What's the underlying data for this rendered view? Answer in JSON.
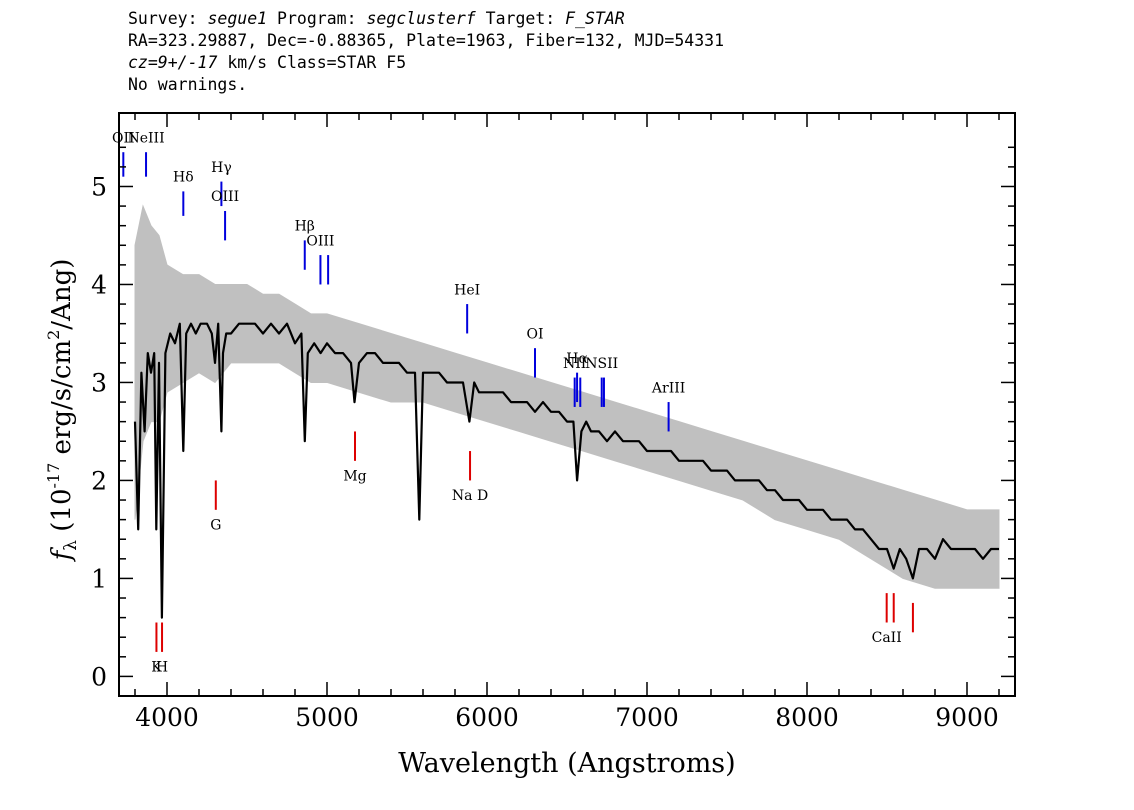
{
  "header": {
    "line1": {
      "survey_label": "Survey: ",
      "survey": "segue1",
      "program_label": " Program: ",
      "program": "segclusterf",
      "target_label": " Target: ",
      "target": "F_STAR"
    },
    "line2": "RA=323.29887, Dec=-0.88365, Plate=1963, Fiber=132, MJD=54331",
    "line3": {
      "cz": "cz=9+/-17",
      "rest": " km/s Class=STAR F5"
    },
    "line4": "No warnings."
  },
  "chart_data": {
    "type": "line",
    "xlabel": "Wavelength (Angstroms)",
    "ylabel_parts": {
      "symbol": "f",
      "subscript": "λ",
      "unit_open": " (10",
      "exponent": "-17",
      "unit_mid": " erg/s/cm",
      "exponent2": "2",
      "unit_close": "/Ang)"
    },
    "xlim": [
      3700,
      9300
    ],
    "ylim": [
      -0.2,
      5.75
    ],
    "x_ticks": [
      4000,
      5000,
      6000,
      7000,
      8000,
      9000
    ],
    "x_tick_labels": [
      "4000",
      "5000",
      "6000",
      "7000",
      "8000",
      "9000"
    ],
    "y_ticks": [
      0,
      1,
      2,
      3,
      4,
      5
    ],
    "y_tick_labels": [
      "0",
      "1",
      "2",
      "3",
      "4",
      "5"
    ],
    "series": [
      {
        "role": "flux",
        "color": "#000000",
        "x": [
          3800,
          3820,
          3840,
          3860,
          3880,
          3900,
          3920,
          3933,
          3950,
          3968,
          3990,
          4020,
          4050,
          4080,
          4102,
          4120,
          4150,
          4180,
          4210,
          4250,
          4280,
          4300,
          4320,
          4340,
          4350,
          4370,
          4400,
          4450,
          4500,
          4550,
          4600,
          4650,
          4700,
          4750,
          4800,
          4840,
          4861,
          4880,
          4920,
          4960,
          5000,
          5050,
          5100,
          5150,
          5172,
          5200,
          5250,
          5300,
          5350,
          5400,
          5450,
          5500,
          5550,
          5577,
          5600,
          5650,
          5700,
          5750,
          5800,
          5850,
          5890,
          5920,
          5950,
          6000,
          6050,
          6100,
          6150,
          6200,
          6250,
          6300,
          6350,
          6400,
          6450,
          6500,
          6540,
          6563,
          6590,
          6620,
          6650,
          6700,
          6750,
          6800,
          6850,
          6900,
          6950,
          7000,
          7050,
          7100,
          7150,
          7200,
          7250,
          7300,
          7350,
          7400,
          7450,
          7500,
          7550,
          7600,
          7650,
          7700,
          7750,
          7800,
          7850,
          7900,
          7950,
          8000,
          8050,
          8100,
          8150,
          8200,
          8250,
          8300,
          8350,
          8400,
          8450,
          8500,
          8542,
          8580,
          8620,
          8662,
          8700,
          8750,
          8800,
          8850,
          8900,
          8950,
          9000,
          9050,
          9100,
          9150,
          9200
        ],
        "y": [
          2.6,
          1.5,
          3.1,
          2.5,
          3.3,
          3.1,
          3.3,
          1.5,
          3.2,
          0.6,
          3.3,
          3.5,
          3.4,
          3.6,
          2.3,
          3.5,
          3.6,
          3.5,
          3.6,
          3.6,
          3.5,
          3.2,
          3.6,
          2.5,
          3.3,
          3.5,
          3.5,
          3.6,
          3.6,
          3.6,
          3.5,
          3.6,
          3.5,
          3.6,
          3.4,
          3.5,
          2.4,
          3.3,
          3.4,
          3.3,
          3.4,
          3.3,
          3.3,
          3.2,
          2.8,
          3.2,
          3.3,
          3.3,
          3.2,
          3.2,
          3.2,
          3.1,
          3.1,
          1.6,
          3.1,
          3.1,
          3.1,
          3.0,
          3.0,
          3.0,
          2.6,
          3.0,
          2.9,
          2.9,
          2.9,
          2.9,
          2.8,
          2.8,
          2.8,
          2.7,
          2.8,
          2.7,
          2.7,
          2.6,
          2.6,
          2.0,
          2.5,
          2.6,
          2.5,
          2.5,
          2.4,
          2.5,
          2.4,
          2.4,
          2.4,
          2.3,
          2.3,
          2.3,
          2.3,
          2.2,
          2.2,
          2.2,
          2.2,
          2.1,
          2.1,
          2.1,
          2.0,
          2.0,
          2.0,
          2.0,
          1.9,
          1.9,
          1.8,
          1.8,
          1.8,
          1.7,
          1.7,
          1.7,
          1.6,
          1.6,
          1.6,
          1.5,
          1.5,
          1.4,
          1.3,
          1.3,
          1.1,
          1.3,
          1.2,
          1.0,
          1.3,
          1.3,
          1.2,
          1.4,
          1.3,
          1.3,
          1.3,
          1.3,
          1.2,
          1.3,
          1.3
        ]
      },
      {
        "role": "error",
        "color": "#c0c0c0",
        "x": [
          3800,
          3850,
          3900,
          3950,
          4000,
          4100,
          4200,
          4300,
          4400,
          4500,
          4600,
          4700,
          4800,
          4900,
          5000,
          5200,
          5400,
          5600,
          5800,
          6000,
          6200,
          6400,
          6600,
          6800,
          7000,
          7200,
          7400,
          7600,
          7800,
          8000,
          8200,
          8400,
          8600,
          8800,
          9000,
          9200
        ],
        "y_low": [
          1.6,
          2.4,
          2.6,
          2.6,
          2.9,
          3.0,
          3.1,
          3.0,
          3.2,
          3.2,
          3.2,
          3.2,
          3.1,
          3.0,
          3.0,
          2.9,
          2.8,
          2.8,
          2.7,
          2.6,
          2.5,
          2.4,
          2.3,
          2.2,
          2.1,
          2.0,
          1.9,
          1.8,
          1.6,
          1.5,
          1.4,
          1.2,
          1.0,
          0.9,
          0.9,
          0.9
        ],
        "y_high": [
          4.4,
          4.8,
          4.6,
          4.5,
          4.2,
          4.1,
          4.1,
          4.0,
          4.0,
          4.0,
          3.9,
          3.9,
          3.8,
          3.7,
          3.7,
          3.6,
          3.5,
          3.4,
          3.3,
          3.2,
          3.1,
          3.0,
          2.9,
          2.8,
          2.7,
          2.6,
          2.5,
          2.4,
          2.3,
          2.2,
          2.1,
          2.0,
          1.9,
          1.8,
          1.7,
          1.7
        ]
      }
    ],
    "emission_lines": [
      {
        "label": "OII",
        "x": 3727,
        "y0": 5.1,
        "y1": 5.35,
        "label_y": 5.45
      },
      {
        "label": "NeIII",
        "x": 3869,
        "y0": 5.1,
        "y1": 5.35,
        "label_y": 5.45
      },
      {
        "label": "Hδ",
        "x": 4102,
        "y0": 4.7,
        "y1": 4.95,
        "label_y": 5.05
      },
      {
        "label": "Hγ",
        "x": 4340,
        "y0": 4.8,
        "y1": 5.05,
        "label_y": 5.15
      },
      {
        "label": "OIII",
        "x": 4363,
        "y0": 4.45,
        "y1": 4.75,
        "label_y": 4.85
      },
      {
        "label": "Hβ",
        "x": 4861,
        "y0": 4.15,
        "y1": 4.45,
        "label_y": 4.55
      },
      {
        "label": "OIII",
        "x": 4959,
        "y0": 4.0,
        "y1": 4.3,
        "label_y": 4.4
      },
      {
        "label": "",
        "x": 5007,
        "y0": 4.0,
        "y1": 4.3,
        "label_y": 4.4
      },
      {
        "label": "HeI",
        "x": 5876,
        "y0": 3.5,
        "y1": 3.8,
        "label_y": 3.9
      },
      {
        "label": "OI",
        "x": 6300,
        "y0": 3.05,
        "y1": 3.35,
        "label_y": 3.45
      },
      {
        "label": "NII",
        "x": 6548,
        "y0": 2.75,
        "y1": 3.05,
        "label_y": 3.15
      },
      {
        "label": "Hα",
        "x": 6563,
        "y0": 2.8,
        "y1": 3.1,
        "label_y": 3.2
      },
      {
        "label": "",
        "x": 6583,
        "y0": 2.75,
        "y1": 3.05,
        "label_y": 3.15
      },
      {
        "label": "NSII",
        "x": 6717,
        "y0": 2.75,
        "y1": 3.05,
        "label_y": 3.15
      },
      {
        "label": "",
        "x": 6731,
        "y0": 2.75,
        "y1": 3.05,
        "label_y": 3.15
      },
      {
        "label": "ArIII",
        "x": 7135,
        "y0": 2.5,
        "y1": 2.8,
        "label_y": 2.9
      }
    ],
    "absorption_lines": [
      {
        "label": "K",
        "x": 3934,
        "y0": 0.55,
        "y1": 0.25,
        "label_y": 0.05
      },
      {
        "label": "H",
        "x": 3969,
        "y0": 0.55,
        "y1": 0.25,
        "label_y": 0.05
      },
      {
        "label": "G",
        "x": 4305,
        "y0": 2.0,
        "y1": 1.7,
        "label_y": 1.5
      },
      {
        "label": "Mg",
        "x": 5175,
        "y0": 2.5,
        "y1": 2.2,
        "label_y": 2.0
      },
      {
        "label": "Na D",
        "x": 5894,
        "y0": 2.3,
        "y1": 2.0,
        "label_y": 1.8
      },
      {
        "label": "CaII",
        "x": 8498,
        "y0": 0.85,
        "y1": 0.55,
        "label_y": 0.35
      },
      {
        "label": "",
        "x": 8542,
        "y0": 0.85,
        "y1": 0.55,
        "label_y": 0.35
      },
      {
        "label": "",
        "x": 8662,
        "y0": 0.75,
        "y1": 0.45,
        "label_y": 0.35
      }
    ],
    "colors": {
      "flux": "#000000",
      "error": "#c0c0c0",
      "emission": "#0000dd",
      "absorption": "#dd0000",
      "axes": "#000000"
    }
  }
}
